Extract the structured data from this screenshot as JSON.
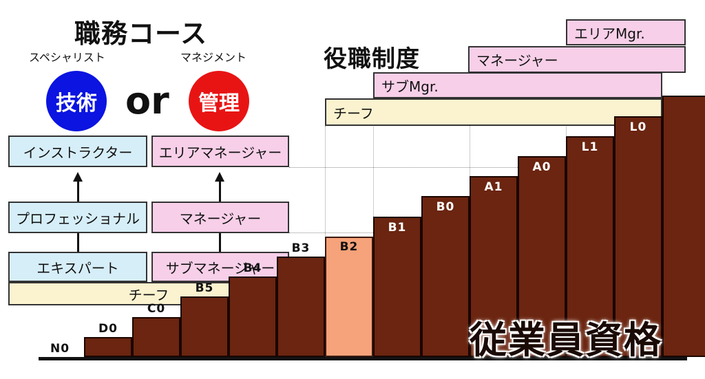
{
  "career_course": {
    "title": "職務コース",
    "left_label": "スペシャリスト",
    "right_label": "マネジメント",
    "left_circle": "技術",
    "right_circle": "管理",
    "or": "or",
    "colors": {
      "technical": "#0b14e0",
      "management": "#e81414"
    }
  },
  "specialist_track": [
    "インストラクター",
    "プロフェッショナル",
    "エキスパート"
  ],
  "management_track": [
    "エリアマネージャー",
    "マネージャー",
    "サブマネージャー"
  ],
  "shared_entry": "チーフ",
  "position_system": {
    "title": "役職制度",
    "roles": [
      "エリアMgr.",
      "マネージャー",
      "サブMgr.",
      "チーフ"
    ]
  },
  "employee_grades": {
    "title": "従業員資格",
    "levels": [
      {
        "label": "N0",
        "level": 0
      },
      {
        "label": "D0",
        "level": 1
      },
      {
        "label": "C0",
        "level": 2
      },
      {
        "label": "B5",
        "level": 3
      },
      {
        "label": "B4",
        "level": 4
      },
      {
        "label": "B3",
        "level": 5
      },
      {
        "label": "B2",
        "level": 6,
        "highlight": true
      },
      {
        "label": "B1",
        "level": 7
      },
      {
        "label": "B0",
        "level": 8
      },
      {
        "label": "A1",
        "level": 9
      },
      {
        "label": "A0",
        "level": 10
      },
      {
        "label": "L1",
        "level": 11
      },
      {
        "label": "L0",
        "level": 12
      },
      {
        "label": "",
        "level": 13
      }
    ],
    "colors": {
      "bar": "#6b2510",
      "highlight": "#f6a27a"
    }
  }
}
